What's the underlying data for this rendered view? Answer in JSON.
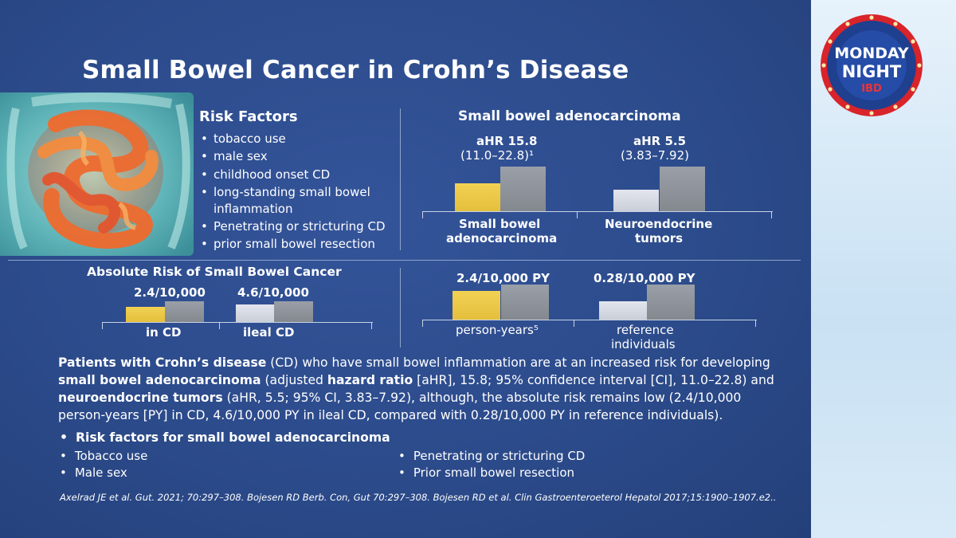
{
  "slide": {
    "title": "Small Bowel Cancer in Crohn’s Disease",
    "risk_factors": {
      "heading": "Risk Factors",
      "items": [
        "tobacco use",
        "male sex",
        "childhood onset CD",
        "long-standing small bowel inflammation",
        "Penetrating or stricturing CD",
        "prior small bowel resection"
      ]
    },
    "colors": {
      "yellow": "#e9c845",
      "gray": "#8e939a",
      "light": "#d6dae3",
      "background": "#2c4b8b"
    },
    "icons": {
      "illustration": "intestine-illustration",
      "logo": "monday-night-ibd-logo"
    }
  },
  "chart_data": [
    {
      "type": "bar",
      "title": "Small bowel adenocarcinoma",
      "categories": [
        "Small bowel adenocarcinoma",
        "Neuroendocrine tumors"
      ],
      "category_labels": [
        [
          "Small bowel",
          "adenocarcinoma"
        ],
        [
          "Neuroendocrine",
          "tumors"
        ]
      ],
      "value_labels": [
        [
          "aHR 15.8",
          "(11.0–22.8)¹"
        ],
        [
          "aHR 5.5",
          "(3.83–7.92)"
        ]
      ],
      "series": [
        {
          "values": [
            0.62,
            0.48
          ]
        },
        {
          "values": [
            1.0,
            1.0
          ]
        }
      ]
    },
    {
      "type": "bar",
      "title": "Absolute Risk of Small Bowel Cancer",
      "categories": [
        "in CD",
        "ileal CD"
      ],
      "value_labels": [
        "2.4/10,000",
        "4.6/10,000"
      ],
      "series": [
        {
          "values": [
            0.72,
            0.86
          ]
        },
        {
          "values": [
            1.0,
            1.0
          ]
        }
      ]
    },
    {
      "type": "bar",
      "categories": [
        "person-years",
        "reference individuals"
      ],
      "category_labels": [
        [
          "person-years⁵"
        ],
        [
          "reference",
          "individuals"
        ]
      ],
      "value_labels": [
        "2.4/10,000 PY",
        "0.28/10,000 PY"
      ],
      "series": [
        {
          "values": [
            0.82,
            0.52
          ]
        },
        {
          "values": [
            1.0,
            1.0
          ]
        }
      ]
    }
  ],
  "summary": {
    "p1_b1": "Patients with Crohn’s disease",
    "p1_t1": " (CD) who have small bowel inflammation are at an increased risk for developing ",
    "p1_b2": "small bowel adenocarcinoma",
    "p1_t2": " (adjusted ",
    "p1_b3": "hazard ratio",
    "p1_t3": " [aHR], 15.8; 95% confidence interval [CI], 11.0–22.8) and ",
    "p1_b4": "neuroendocrine tumors",
    "p1_t4": " (aHR, 5.5; 95% CI, 3.83–7.92), although, the absolute risk remains low (2.4/10,000 person-years [PY] in CD, 4.6/10,000 PY in ileal CD, compared with 0.28/10,000 PY in reference individuals)."
  },
  "bullets": {
    "heading": "Risk factors for small bowel adenocarcinoma",
    "left": [
      "Tobacco use",
      "Male sex"
    ],
    "right": [
      "Penetrating or stricturing CD",
      "Prior small bowel resection"
    ]
  },
  "citations": "Axelrad JE et al. Gut. 2021; 70:297–308.   Bojesen RD Berb. Con, Gut 70:297–308.   Bojesen RD et al. Clin Gastroenteroeterol Hepatol 2017;15:1900–1907.e2..",
  "logo": {
    "line1": "MONDAY",
    "line2": "NIGHT",
    "line3": "IBD"
  }
}
